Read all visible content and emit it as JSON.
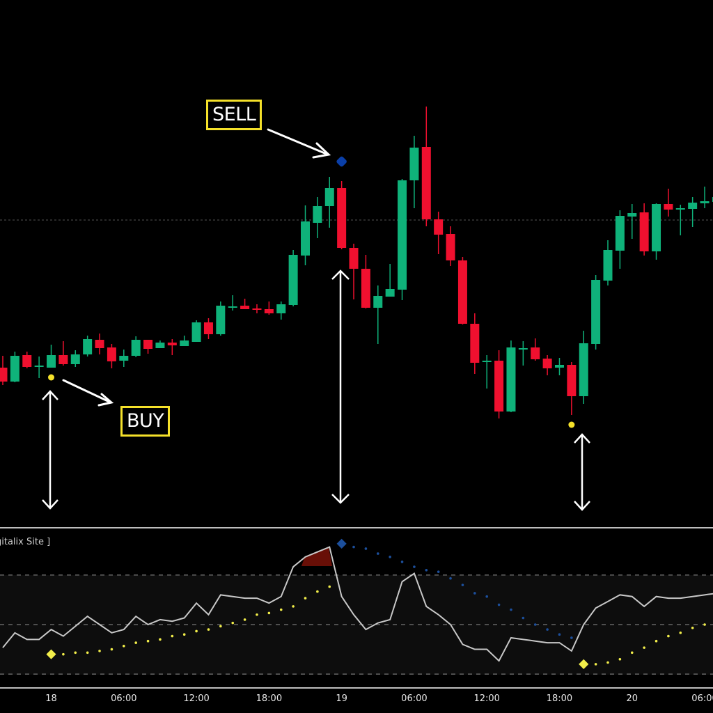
{
  "chart_data": {
    "type": "candlestick",
    "title": "",
    "price_scale": "relative price (no axis printed)",
    "colors": {
      "up": "#0fb27a",
      "down": "#f0102f",
      "background": "#000000",
      "signal_buy": "#f5e12a",
      "signal_sell": "#0a3fa8",
      "oscillator": "#c8c8c8"
    },
    "candles": [
      {
        "o": 232,
        "h": 249,
        "l": 207,
        "c": 212
      },
      {
        "o": 212,
        "h": 255,
        "l": 211,
        "c": 249
      },
      {
        "o": 250,
        "h": 255,
        "l": 231,
        "c": 233
      },
      {
        "o": 235,
        "h": 248,
        "l": 217,
        "c": 235
      },
      {
        "o": 232,
        "h": 265,
        "l": 232,
        "c": 250
      },
      {
        "o": 250,
        "h": 270,
        "l": 235,
        "c": 237
      },
      {
        "o": 237,
        "h": 257,
        "l": 233,
        "c": 251
      },
      {
        "o": 251,
        "h": 278,
        "l": 248,
        "c": 273
      },
      {
        "o": 272,
        "h": 281,
        "l": 251,
        "c": 260
      },
      {
        "o": 261,
        "h": 266,
        "l": 231,
        "c": 241
      },
      {
        "o": 242,
        "h": 258,
        "l": 233,
        "c": 249
      },
      {
        "o": 249,
        "h": 277,
        "l": 247,
        "c": 272
      },
      {
        "o": 272,
        "h": 272,
        "l": 252,
        "c": 259
      },
      {
        "o": 260,
        "h": 271,
        "l": 260,
        "c": 268
      },
      {
        "o": 268,
        "h": 273,
        "l": 250,
        "c": 264
      },
      {
        "o": 263,
        "h": 278,
        "l": 263,
        "c": 271
      },
      {
        "o": 269,
        "h": 300,
        "l": 269,
        "c": 297
      },
      {
        "o": 297,
        "h": 303,
        "l": 273,
        "c": 280
      },
      {
        "o": 280,
        "h": 327,
        "l": 278,
        "c": 321
      },
      {
        "o": 320,
        "h": 336,
        "l": 314,
        "c": 320
      },
      {
        "o": 321,
        "h": 331,
        "l": 316,
        "c": 316
      },
      {
        "o": 317,
        "h": 323,
        "l": 310,
        "c": 316
      },
      {
        "o": 316,
        "h": 327,
        "l": 308,
        "c": 310
      },
      {
        "o": 310,
        "h": 327,
        "l": 301,
        "c": 323
      },
      {
        "o": 322,
        "h": 401,
        "l": 320,
        "c": 394
      },
      {
        "o": 393,
        "h": 465,
        "l": 379,
        "c": 442
      },
      {
        "o": 440,
        "h": 477,
        "l": 418,
        "c": 464
      },
      {
        "o": 464,
        "h": 506,
        "l": 433,
        "c": 490
      },
      {
        "o": 490,
        "h": 500,
        "l": 402,
        "c": 404
      },
      {
        "o": 404,
        "h": 410,
        "l": 330,
        "c": 374
      },
      {
        "o": 374,
        "h": 394,
        "l": 317,
        "c": 318
      },
      {
        "o": 318,
        "h": 350,
        "l": 266,
        "c": 335
      },
      {
        "o": 334,
        "h": 381,
        "l": 334,
        "c": 345
      },
      {
        "o": 344,
        "h": 503,
        "l": 329,
        "c": 501
      },
      {
        "o": 501,
        "h": 565,
        "l": 461,
        "c": 548
      },
      {
        "o": 549,
        "h": 607,
        "l": 435,
        "c": 445
      },
      {
        "o": 445,
        "h": 456,
        "l": 395,
        "c": 423
      },
      {
        "o": 424,
        "h": 435,
        "l": 378,
        "c": 386
      },
      {
        "o": 386,
        "h": 391,
        "l": 294,
        "c": 295
      },
      {
        "o": 295,
        "h": 310,
        "l": 223,
        "c": 239
      },
      {
        "o": 242,
        "h": 250,
        "l": 202,
        "c": 242
      },
      {
        "o": 242,
        "h": 257,
        "l": 159,
        "c": 169
      },
      {
        "o": 169,
        "h": 271,
        "l": 168,
        "c": 261
      },
      {
        "o": 260,
        "h": 270,
        "l": 235,
        "c": 260
      },
      {
        "o": 261,
        "h": 274,
        "l": 242,
        "c": 244
      },
      {
        "o": 245,
        "h": 250,
        "l": 221,
        "c": 231
      },
      {
        "o": 232,
        "h": 246,
        "l": 221,
        "c": 236
      },
      {
        "o": 236,
        "h": 240,
        "l": 164,
        "c": 191
      },
      {
        "o": 191,
        "h": 285,
        "l": 180,
        "c": 267
      },
      {
        "o": 266,
        "h": 365,
        "l": 258,
        "c": 358
      },
      {
        "o": 357,
        "h": 415,
        "l": 350,
        "c": 401
      },
      {
        "o": 400,
        "h": 458,
        "l": 374,
        "c": 450
      },
      {
        "o": 449,
        "h": 467,
        "l": 417,
        "c": 454
      },
      {
        "o": 455,
        "h": 468,
        "l": 393,
        "c": 399
      },
      {
        "o": 399,
        "h": 468,
        "l": 387,
        "c": 467
      },
      {
        "o": 467,
        "h": 489,
        "l": 449,
        "c": 459
      },
      {
        "o": 461,
        "h": 466,
        "l": 422,
        "c": 461
      },
      {
        "o": 460,
        "h": 477,
        "l": 434,
        "c": 469
      },
      {
        "o": 468,
        "h": 492,
        "l": 461,
        "c": 471
      },
      {
        "o": 470,
        "h": 480,
        "l": 468,
        "c": 477
      }
    ],
    "reference_price_line": 444,
    "x_tick_labels": [
      {
        "index": 4,
        "label": "18"
      },
      {
        "index": 10,
        "label": "06:00"
      },
      {
        "index": 16,
        "label": "12:00"
      },
      {
        "index": 22,
        "label": "18:00"
      },
      {
        "index": 28,
        "label": "19"
      },
      {
        "index": 34,
        "label": "06:00"
      },
      {
        "index": 40,
        "label": "12:00"
      },
      {
        "index": 46,
        "label": "18:00"
      },
      {
        "index": 52,
        "label": "20"
      },
      {
        "index": 58,
        "label": "06:00"
      }
    ],
    "signals": [
      {
        "type": "buy",
        "index": 4,
        "label": "BUY",
        "marker": "yellow-dot"
      },
      {
        "type": "sell",
        "index": 28,
        "label": "SELL",
        "marker": "blue-diamond"
      },
      {
        "type": "buy",
        "index": 47,
        "label": "",
        "marker": "yellow-dot"
      }
    ],
    "indicator": {
      "label": "gitalix Site ]",
      "levels": [
        80,
        50,
        20
      ],
      "line": [
        36,
        45,
        41,
        41,
        47,
        43,
        49,
        55,
        50,
        45,
        47,
        55,
        50,
        53,
        52,
        54,
        63,
        56,
        68,
        67,
        66,
        66,
        63,
        67,
        85,
        91,
        94,
        97,
        67,
        56,
        47,
        51,
        53,
        76,
        81,
        61,
        56,
        50,
        38,
        35,
        35,
        28,
        42,
        41,
        40,
        39,
        39,
        34,
        50,
        60,
        64,
        68,
        67,
        61,
        67,
        66,
        66,
        67,
        68,
        69
      ],
      "dots": [
        {
          "color": "yellow",
          "start": 4,
          "values": [
            32,
            32,
            33,
            33,
            34,
            35,
            37,
            39,
            40,
            41,
            43,
            44,
            46,
            47,
            49,
            51,
            53,
            56,
            57,
            59,
            61,
            66,
            70,
            73
          ]
        },
        {
          "color": "blue",
          "start": 28,
          "values": [
            99,
            97,
            96,
            93,
            91,
            88,
            85,
            83,
            82,
            78,
            74,
            69,
            67,
            62,
            59,
            54,
            50,
            47,
            44,
            42
          ]
        },
        {
          "color": "yellow",
          "start": 48,
          "values": [
            26,
            26,
            27,
            29,
            33,
            36,
            40,
            43,
            45,
            48,
            50,
            52
          ]
        }
      ]
    }
  },
  "annotations": {
    "sell_label": "SELL",
    "buy_label": "BUY"
  }
}
